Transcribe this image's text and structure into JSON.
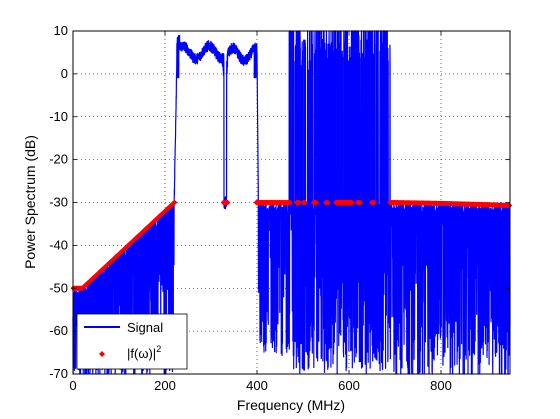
{
  "chart_data": {
    "type": "line",
    "xlabel": "Frequency (MHz)",
    "ylabel": "Power Spectrum (dB)",
    "xlim": [
      0,
      950
    ],
    "ylim": [
      -70,
      10
    ],
    "xticks": [
      0,
      200,
      400,
      600,
      800
    ],
    "yticks": [
      10,
      0,
      -10,
      -20,
      -30,
      -40,
      -50,
      -60,
      -70
    ],
    "grid": true,
    "grid_style": "dotted",
    "legend_position": "lower-left",
    "series": [
      {
        "name": "Signal",
        "color": "#0000ff",
        "style": "line",
        "bands": [
          {
            "x": [
              0,
              220
            ],
            "upper": "ramp from -50 dB at 20 MHz to -30 dB at 220 MHz",
            "lower": -70
          },
          {
            "x": [
              225,
              325
            ],
            "level": 5,
            "ripple": 3
          },
          {
            "x": [
              328,
              335
            ],
            "level": -30
          },
          {
            "x": [
              335,
              400
            ],
            "level": 5,
            "ripple": 3
          },
          {
            "x": [
              400,
              470
            ],
            "level": -30,
            "lower": -65
          },
          {
            "x": [
              470,
              690
            ],
            "level": "spiky between -65 and 10",
            "lower": -70
          },
          {
            "x": [
              690,
              950
            ],
            "level": -30,
            "lower": -70
          }
        ]
      },
      {
        "name": "|f(ω)|",
        "name_superscript": "2",
        "color": "#ff0000",
        "style": "markers",
        "x": [
          0,
          20,
          50,
          100,
          150,
          200,
          220,
          328,
          335,
          400,
          470,
          500,
          600,
          650,
          700,
          800,
          900,
          950
        ],
        "y": [
          -50,
          -50,
          -47,
          -42,
          -37,
          -32,
          -30,
          -30,
          -30,
          -30,
          -30,
          -30,
          -30,
          -30,
          -30,
          -30.2,
          -30.5,
          -30.7
        ]
      }
    ]
  },
  "legend": {
    "signal_label": "Signal",
    "marker_label": "|f(ω)|",
    "marker_sup": "2"
  }
}
